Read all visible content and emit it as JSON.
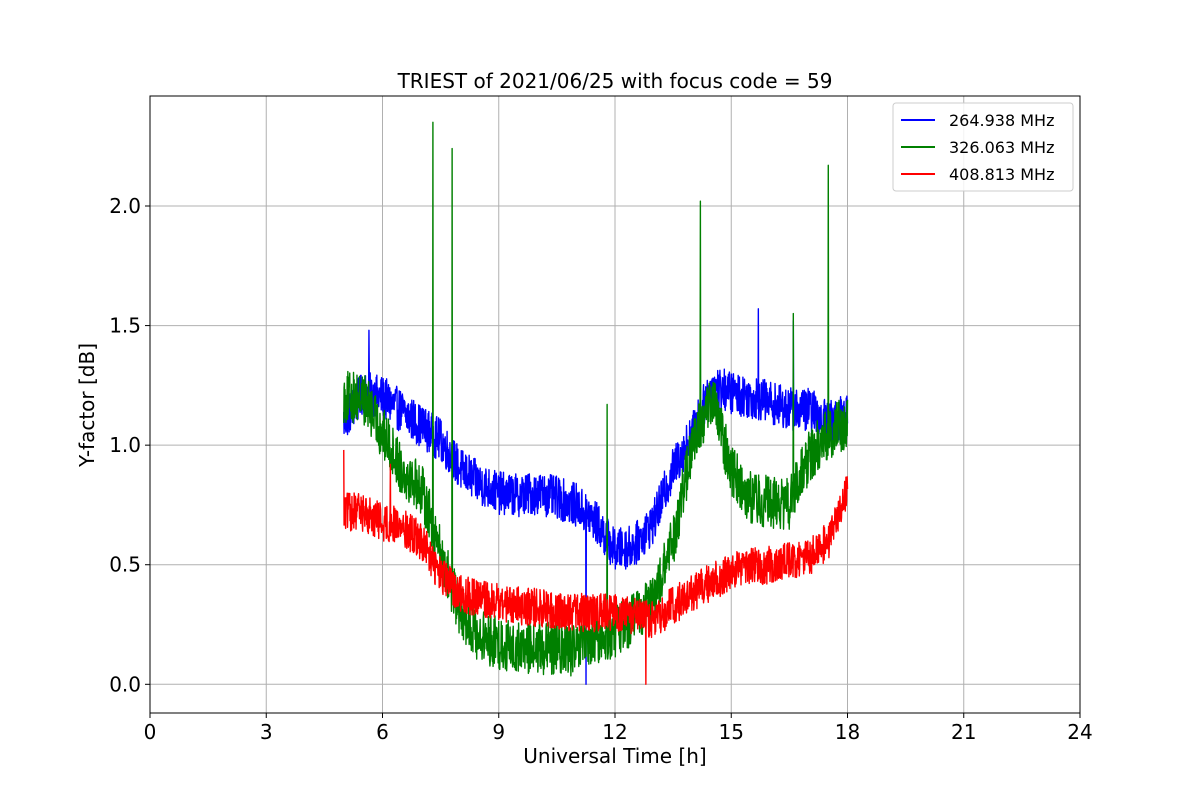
{
  "chart_data": {
    "type": "line",
    "title": "TRIEST of 2021/06/25 with focus code = 59",
    "xlabel": "Universal Time [h]",
    "ylabel": "Y-factor [dB]",
    "xlim": [
      0,
      24
    ],
    "ylim": [
      -0.12,
      2.46
    ],
    "xticks": [
      0,
      3,
      6,
      9,
      12,
      15,
      18,
      21,
      24
    ],
    "yticks": [
      0.0,
      0.5,
      1.0,
      1.5,
      2.0
    ],
    "xtick_labels": [
      "0",
      "3",
      "6",
      "9",
      "12",
      "15",
      "18",
      "21",
      "24"
    ],
    "ytick_labels": [
      "0.0",
      "0.5",
      "1.0",
      "1.5",
      "2.0"
    ],
    "grid": true,
    "legend_position": "top-right",
    "colors": {
      "264.938 MHz": "#0000ff",
      "326.063 MHz": "#008000",
      "408.813 MHz": "#ff0000"
    },
    "noise_amplitude": {
      "264.938 MHz": 0.09,
      "326.063 MHz": 0.11,
      "408.813 MHz": 0.08
    },
    "series": [
      {
        "name": "264.938 MHz",
        "color": "#0000ff",
        "x": [
          5.0,
          5.5,
          6.0,
          6.5,
          7.0,
          7.5,
          8.0,
          8.5,
          9.0,
          9.5,
          10.0,
          10.5,
          11.0,
          11.5,
          12.0,
          12.5,
          13.0,
          13.5,
          14.0,
          14.5,
          15.0,
          15.5,
          16.0,
          16.5,
          17.0,
          17.5,
          18.0
        ],
        "y": [
          1.1,
          1.22,
          1.2,
          1.14,
          1.08,
          1.02,
          0.9,
          0.84,
          0.8,
          0.79,
          0.8,
          0.78,
          0.75,
          0.68,
          0.56,
          0.58,
          0.68,
          0.9,
          1.05,
          1.25,
          1.22,
          1.2,
          1.18,
          1.15,
          1.15,
          1.1,
          1.12
        ],
        "spikes": [
          [
            5.65,
            1.48
          ],
          [
            11.25,
            0.0
          ],
          [
            15.7,
            1.57
          ],
          [
            16.6,
            1.52
          ]
        ]
      },
      {
        "name": "326.063 MHz",
        "color": "#008000",
        "x": [
          5.0,
          5.5,
          6.0,
          6.5,
          7.0,
          7.5,
          8.0,
          8.5,
          9.0,
          9.5,
          10.0,
          10.5,
          11.0,
          11.5,
          12.0,
          12.5,
          13.0,
          13.5,
          14.0,
          14.5,
          15.0,
          15.5,
          16.0,
          16.5,
          17.0,
          17.5,
          18.0
        ],
        "y": [
          1.2,
          1.2,
          1.05,
          0.9,
          0.82,
          0.55,
          0.3,
          0.2,
          0.17,
          0.15,
          0.15,
          0.15,
          0.14,
          0.18,
          0.22,
          0.28,
          0.35,
          0.6,
          1.0,
          1.2,
          0.9,
          0.78,
          0.76,
          0.75,
          0.95,
          1.05,
          1.1
        ],
        "spikes": [
          [
            7.3,
            2.35
          ],
          [
            7.8,
            2.24
          ],
          [
            11.8,
            1.17
          ],
          [
            14.2,
            2.02
          ],
          [
            16.6,
            1.55
          ],
          [
            17.5,
            2.17
          ]
        ]
      },
      {
        "name": "408.813 MHz",
        "color": "#ff0000",
        "x": [
          5.0,
          5.5,
          6.0,
          6.5,
          7.0,
          7.5,
          8.0,
          8.5,
          9.0,
          9.5,
          10.0,
          10.5,
          11.0,
          11.5,
          12.0,
          12.5,
          13.0,
          13.5,
          14.0,
          14.5,
          15.0,
          15.5,
          16.0,
          16.5,
          17.0,
          17.5,
          18.0
        ],
        "y": [
          0.72,
          0.72,
          0.68,
          0.66,
          0.6,
          0.45,
          0.38,
          0.36,
          0.34,
          0.33,
          0.32,
          0.31,
          0.3,
          0.3,
          0.3,
          0.28,
          0.27,
          0.33,
          0.38,
          0.43,
          0.47,
          0.49,
          0.5,
          0.52,
          0.53,
          0.6,
          0.82
        ],
        "spikes": [
          [
            5.0,
            0.98
          ],
          [
            6.2,
            0.92
          ],
          [
            12.8,
            0.0
          ]
        ]
      }
    ]
  }
}
